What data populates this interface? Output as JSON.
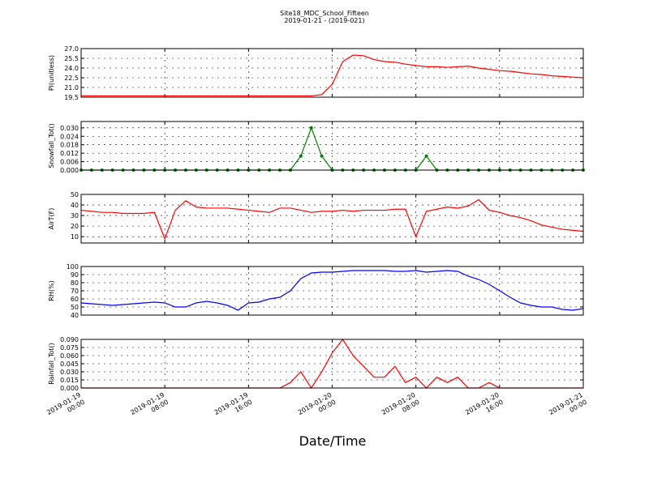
{
  "chart_data": {
    "type": "line",
    "title": "Site18_MDC_School_Fifteen",
    "subtitle": "2019-01-21 - (2019-021)",
    "xlabel": "Date/Time",
    "grid": true,
    "xlim": [
      "2019-01-19 00:00",
      "2019-01-21 00:00"
    ],
    "xticks": [
      "2019-01-19 00:00",
      "2019-01-19 08:00",
      "2019-01-19 16:00",
      "2019-01-20 00:00",
      "2019-01-20 08:00",
      "2019-01-20 16:00",
      "2019-01-21 00:00"
    ],
    "x": [
      "2019-01-19 00:00",
      "2019-01-19 01:00",
      "2019-01-19 02:00",
      "2019-01-19 03:00",
      "2019-01-19 04:00",
      "2019-01-19 05:00",
      "2019-01-19 06:00",
      "2019-01-19 07:00",
      "2019-01-19 08:00",
      "2019-01-19 09:00",
      "2019-01-19 10:00",
      "2019-01-19 11:00",
      "2019-01-19 12:00",
      "2019-01-19 13:00",
      "2019-01-19 14:00",
      "2019-01-19 15:00",
      "2019-01-19 16:00",
      "2019-01-19 17:00",
      "2019-01-19 18:00",
      "2019-01-19 19:00",
      "2019-01-19 20:00",
      "2019-01-19 21:00",
      "2019-01-19 22:00",
      "2019-01-19 23:00",
      "2019-01-20 00:00",
      "2019-01-20 01:00",
      "2019-01-20 02:00",
      "2019-01-20 03:00",
      "2019-01-20 04:00",
      "2019-01-20 05:00",
      "2019-01-20 06:00",
      "2019-01-20 07:00",
      "2019-01-20 08:00",
      "2019-01-20 09:00",
      "2019-01-20 10:00",
      "2019-01-20 11:00",
      "2019-01-20 12:00",
      "2019-01-20 13:00",
      "2019-01-20 14:00",
      "2019-01-20 15:00",
      "2019-01-20 16:00",
      "2019-01-20 17:00",
      "2019-01-20 18:00",
      "2019-01-20 19:00",
      "2019-01-20 20:00",
      "2019-01-20 21:00",
      "2019-01-20 22:00",
      "2019-01-20 23:00",
      "2019-01-21 00:00"
    ],
    "panels": [
      {
        "ylabel": "Pl(unitless)",
        "ylim": [
          19.5,
          27.0
        ],
        "yticks": [
          19.5,
          {
            "value": 21,
            "label": "21.0"
          },
          22.5,
          {
            "value": 24,
            "label": "24.0"
          },
          25.5,
          {
            "value": 27,
            "label": "27.0"
          }
        ],
        "series": [
          {
            "color": "#ff0000",
            "markers": false,
            "values": [
              19.7,
              19.7,
              19.7,
              19.7,
              19.7,
              19.7,
              19.7,
              19.7,
              19.7,
              19.7,
              19.7,
              19.7,
              19.7,
              19.7,
              19.7,
              19.7,
              19.7,
              19.7,
              19.7,
              19.7,
              19.7,
              19.7,
              19.7,
              19.9,
              21.5,
              25.0,
              26.0,
              25.9,
              25.3,
              25.0,
              24.9,
              24.6,
              24.4,
              24.2,
              24.2,
              24.1,
              24.2,
              24.3,
              24.0,
              23.8,
              23.6,
              23.5,
              23.3,
              23.1,
              23.0,
              22.8,
              22.7,
              22.6,
              22.5
            ]
          }
        ]
      },
      {
        "ylabel": "Snowfall_Tot()",
        "ylim": [
          0,
          0.0345
        ],
        "yticks": [
          {
            "value": 0,
            "label": "0.000"
          },
          {
            "value": 0.006,
            "label": "0.006"
          },
          {
            "value": 0.012,
            "label": "0.012"
          },
          {
            "value": 0.018,
            "label": "0.018"
          },
          {
            "value": 0.024,
            "label": "0.024"
          },
          {
            "value": 0.03,
            "label": "0.030"
          }
        ],
        "series": [
          {
            "color": "#008000",
            "markers": true,
            "values": [
              0,
              0,
              0,
              0,
              0,
              0,
              0,
              0,
              0,
              0,
              0,
              0,
              0,
              0,
              0,
              0,
              0,
              0,
              0,
              0,
              0,
              0.01,
              0.03,
              0.01,
              0,
              0,
              0,
              0,
              0,
              0,
              0,
              0,
              0,
              0.01,
              0,
              0,
              0,
              0,
              0,
              0,
              0,
              0,
              0,
              0,
              0,
              0,
              0,
              0,
              0
            ]
          }
        ]
      },
      {
        "ylabel": "AirT(F)",
        "ylim": [
          4,
          50
        ],
        "yticks": [
          10,
          20,
          30,
          40,
          50
        ],
        "series": [
          {
            "color": "#ff0000",
            "markers": false,
            "values": [
              35,
              34,
              33,
              33,
              32,
              32,
              32,
              33,
              8,
              35,
              44,
              38,
              37,
              37,
              37,
              36,
              35,
              34,
              33,
              37,
              37,
              35,
              33,
              34,
              34,
              35,
              34,
              35,
              35,
              35,
              36,
              36,
              10,
              34,
              36,
              38,
              37,
              39,
              45,
              35,
              33,
              30,
              28,
              25,
              21,
              19,
              17,
              16,
              15
            ]
          }
        ]
      },
      {
        "ylabel": "RH(%)",
        "ylim": [
          40,
          100
        ],
        "yticks": [
          40,
          50,
          60,
          70,
          80,
          90,
          100
        ],
        "series": [
          {
            "color": "#0000ff",
            "markers": false,
            "values": [
              55,
              54,
              53,
              52,
              53,
              54,
              55,
              56,
              55,
              50,
              50,
              55,
              57,
              55,
              52,
              46,
              55,
              56,
              60,
              62,
              70,
              85,
              92,
              93,
              93,
              94,
              95,
              95,
              95,
              95,
              94,
              94,
              95,
              93,
              94,
              95,
              94,
              88,
              84,
              78,
              70,
              62,
              55,
              52,
              50,
              50,
              47,
              46,
              48
            ]
          }
        ]
      },
      {
        "ylabel": "Rainfall_Tot()",
        "ylim": [
          0,
          0.09
        ],
        "yticks": [
          {
            "value": 0,
            "label": "0.000"
          },
          {
            "value": 0.015,
            "label": "0.015"
          },
          {
            "value": 0.03,
            "label": "0.030"
          },
          {
            "value": 0.045,
            "label": "0.045"
          },
          {
            "value": 0.06,
            "label": "0.060"
          },
          {
            "value": 0.075,
            "label": "0.075"
          },
          {
            "value": 0.09,
            "label": "0.090"
          }
        ],
        "series": [
          {
            "color": "#ff0000",
            "markers": false,
            "values": [
              0,
              0,
              0,
              0,
              0,
              0,
              0,
              0,
              0,
              0,
              0,
              0,
              0,
              0,
              0,
              0,
              0,
              0,
              0,
              0,
              0.01,
              0.03,
              0,
              0.03,
              0.065,
              0.09,
              0.06,
              0.04,
              0.02,
              0.02,
              0.04,
              0.01,
              0.02,
              0,
              0.02,
              0.01,
              0.02,
              0,
              0,
              0.01,
              0,
              0,
              0,
              0,
              0,
              0,
              0,
              0,
              0
            ]
          }
        ]
      }
    ]
  }
}
